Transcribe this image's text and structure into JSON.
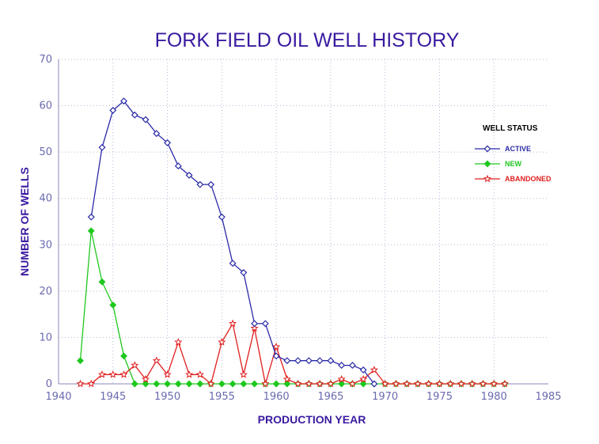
{
  "chart_data": {
    "type": "line",
    "title": "FORK FIELD OIL WELL HISTORY",
    "xlabel": "PRODUCTION YEAR",
    "ylabel": "NUMBER OF WELLS",
    "xlim": [
      1940,
      1985
    ],
    "ylim": [
      0,
      70
    ],
    "xticks": [
      1940,
      1945,
      1950,
      1955,
      1960,
      1965,
      1970,
      1975,
      1980,
      1985
    ],
    "yticks": [
      0,
      10,
      20,
      30,
      40,
      50,
      60,
      70
    ],
    "grid": true,
    "legend": {
      "title": "WELL STATUS",
      "placement": "right"
    },
    "series": [
      {
        "name": "ACTIVE",
        "color": "#2a2aa8",
        "marker": "diamond-open",
        "x": [
          1943,
          1944,
          1945,
          1946,
          1947,
          1948,
          1949,
          1950,
          1951,
          1952,
          1953,
          1954,
          1955,
          1956,
          1957,
          1958,
          1959,
          1960,
          1961,
          1962,
          1963,
          1964,
          1965,
          1966,
          1967,
          1968,
          1969
        ],
        "y": [
          36,
          51,
          59,
          61,
          58,
          57,
          54,
          52,
          47,
          45,
          43,
          43,
          36,
          26,
          24,
          13,
          13,
          6,
          5,
          5,
          5,
          5,
          5,
          4,
          4,
          3,
          0
        ]
      },
      {
        "name": "NEW",
        "color": "#1ec81e",
        "marker": "diamond-filled",
        "x": [
          1942,
          1943,
          1944,
          1945,
          1946,
          1947,
          1948,
          1949,
          1950,
          1951,
          1952,
          1953,
          1954,
          1955,
          1956,
          1957,
          1958,
          1959,
          1960,
          1961,
          1962,
          1963,
          1964,
          1965,
          1966,
          1967,
          1968,
          1969,
          1970,
          1971,
          1972,
          1973,
          1974,
          1975,
          1976,
          1977,
          1978,
          1979,
          1980,
          1981
        ],
        "y": [
          5,
          33,
          22,
          17,
          6,
          0,
          0,
          0,
          0,
          0,
          0,
          0,
          0,
          0,
          0,
          0,
          0,
          0,
          0,
          0,
          0,
          0,
          0,
          0,
          0,
          0,
          0,
          0,
          0,
          0,
          0,
          0,
          0,
          0,
          0,
          0,
          0,
          0,
          0,
          0
        ]
      },
      {
        "name": "ABANDONED",
        "color": "#e01e1e",
        "marker": "star",
        "x": [
          1942,
          1943,
          1944,
          1945,
          1946,
          1947,
          1948,
          1949,
          1950,
          1951,
          1952,
          1953,
          1954,
          1955,
          1956,
          1957,
          1958,
          1959,
          1960,
          1961,
          1962,
          1963,
          1964,
          1965,
          1966,
          1967,
          1968,
          1969,
          1970,
          1971,
          1972,
          1973,
          1974,
          1975,
          1976,
          1977,
          1978,
          1979,
          1980,
          1981
        ],
        "y": [
          0,
          0,
          2,
          2,
          2,
          4,
          1,
          5,
          2,
          9,
          2,
          2,
          0,
          9,
          13,
          2,
          12,
          0,
          8,
          1,
          0,
          0,
          0,
          0,
          1,
          0,
          1,
          3,
          0,
          0,
          0,
          0,
          0,
          0,
          0,
          0,
          0,
          0,
          0,
          0
        ]
      }
    ]
  }
}
